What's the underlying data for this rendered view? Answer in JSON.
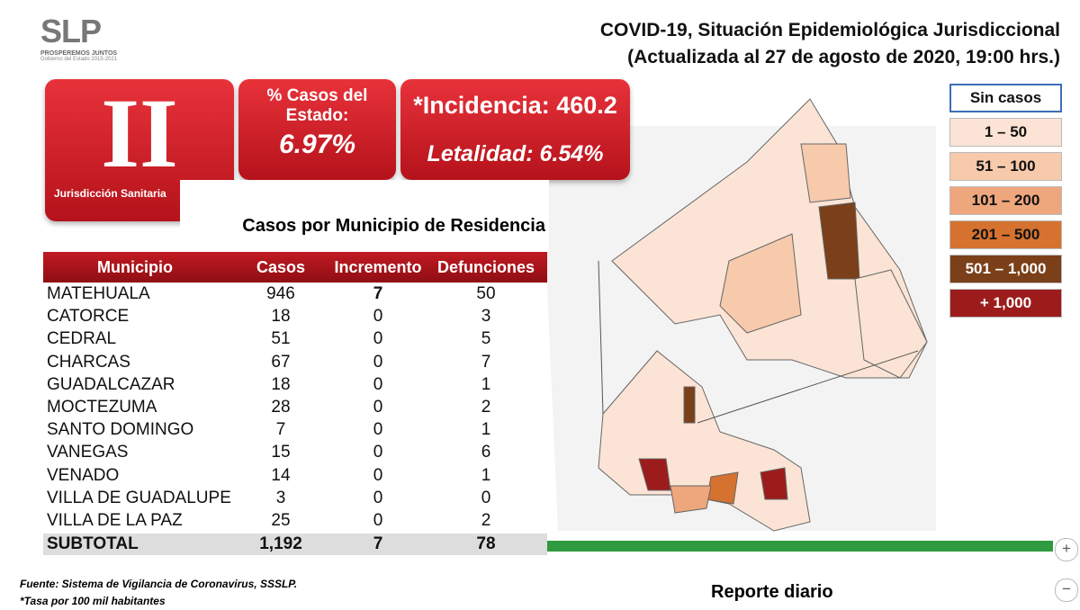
{
  "logo": {
    "name": "SLP",
    "tagline": "PROSPEREMOS JUNTOS",
    "subtitle": "Gobierno del Estado 2015-2021"
  },
  "header": {
    "title": "COVID-19, Situación Epidemiológica Jurisdiccional",
    "updated": "(Actualizada al 27 de agosto de 2020, 19:00 hrs.)"
  },
  "badge": {
    "numeral": "II",
    "label": "Jurisdicción Sanitaria"
  },
  "stats": {
    "share_label": "% Casos del Estado:",
    "share_value": "6.97%",
    "incidence": "*Incidencia: 460.2",
    "lethality": "Letalidad: 6.54%"
  },
  "table": {
    "title": "Casos por Municipio  de Residencia",
    "columns": [
      "Municipio",
      "Casos",
      "Incremento",
      "Defunciones"
    ],
    "rows": [
      [
        "MATEHUALA",
        946,
        7,
        50
      ],
      [
        "CATORCE",
        18,
        0,
        3
      ],
      [
        "CEDRAL",
        51,
        0,
        5
      ],
      [
        "CHARCAS",
        67,
        0,
        7
      ],
      [
        "GUADALCAZAR",
        18,
        0,
        1
      ],
      [
        "MOCTEZUMA",
        28,
        0,
        2
      ],
      [
        "SANTO DOMINGO",
        7,
        0,
        1
      ],
      [
        "VANEGAS",
        15,
        0,
        6
      ],
      [
        "VENADO",
        14,
        0,
        1
      ],
      [
        "VILLA DE GUADALUPE",
        3,
        0,
        0
      ],
      [
        "VILLA DE LA PAZ",
        25,
        0,
        2
      ]
    ],
    "subtotal": [
      "SUBTOTAL",
      "1,192",
      7,
      78
    ]
  },
  "legend": [
    {
      "label": "Sin casos",
      "color": "#ffffff"
    },
    {
      "label": "1 – 50",
      "color": "#fbe4d5"
    },
    {
      "label": "51 – 100",
      "color": "#f7caac"
    },
    {
      "label": "101 – 200",
      "color": "#eea67c"
    },
    {
      "label": "201 – 500",
      "color": "#d6722f"
    },
    {
      "label": "501 – 1,000",
      "color": "#7b3f19"
    },
    {
      "label": "+ 1,000",
      "color": "#9c1c1c"
    }
  ],
  "footer": {
    "source": "Fuente: Sistema de Vigilancia de Coronavirus, SSSLP.",
    "note": "*Tasa por 100 mil habitantes",
    "report": "Reporte diario"
  },
  "controls": {
    "zoom_in": "+",
    "zoom_out": "−"
  }
}
